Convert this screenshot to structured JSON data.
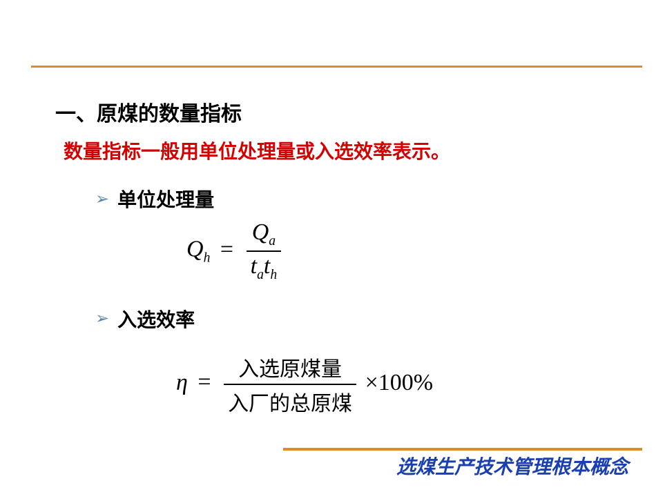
{
  "heading": "一、原煤的数量指标",
  "subheading": "数量指标一般用单位处理量或入选效率表示。",
  "bullets": [
    {
      "label": "单位处理量"
    },
    {
      "label": "入选效率"
    }
  ],
  "formula1": {
    "lhs_var": "Q",
    "lhs_sub": "h",
    "num_var": "Q",
    "num_sub": "a",
    "den_var1": "t",
    "den_sub1": "a",
    "den_var2": "t",
    "den_sub2": "h"
  },
  "formula2": {
    "lhs": "η",
    "num_text": "入选原煤量",
    "den_text": "入厂的总原煤",
    "tail": "×100%"
  },
  "footer": "选煤生产技术管理根本概念",
  "colors": {
    "rule": "#e08a2c",
    "red": "#d40000",
    "bullet": "#5a8aa8",
    "footer_text": "#1a3fb0"
  }
}
